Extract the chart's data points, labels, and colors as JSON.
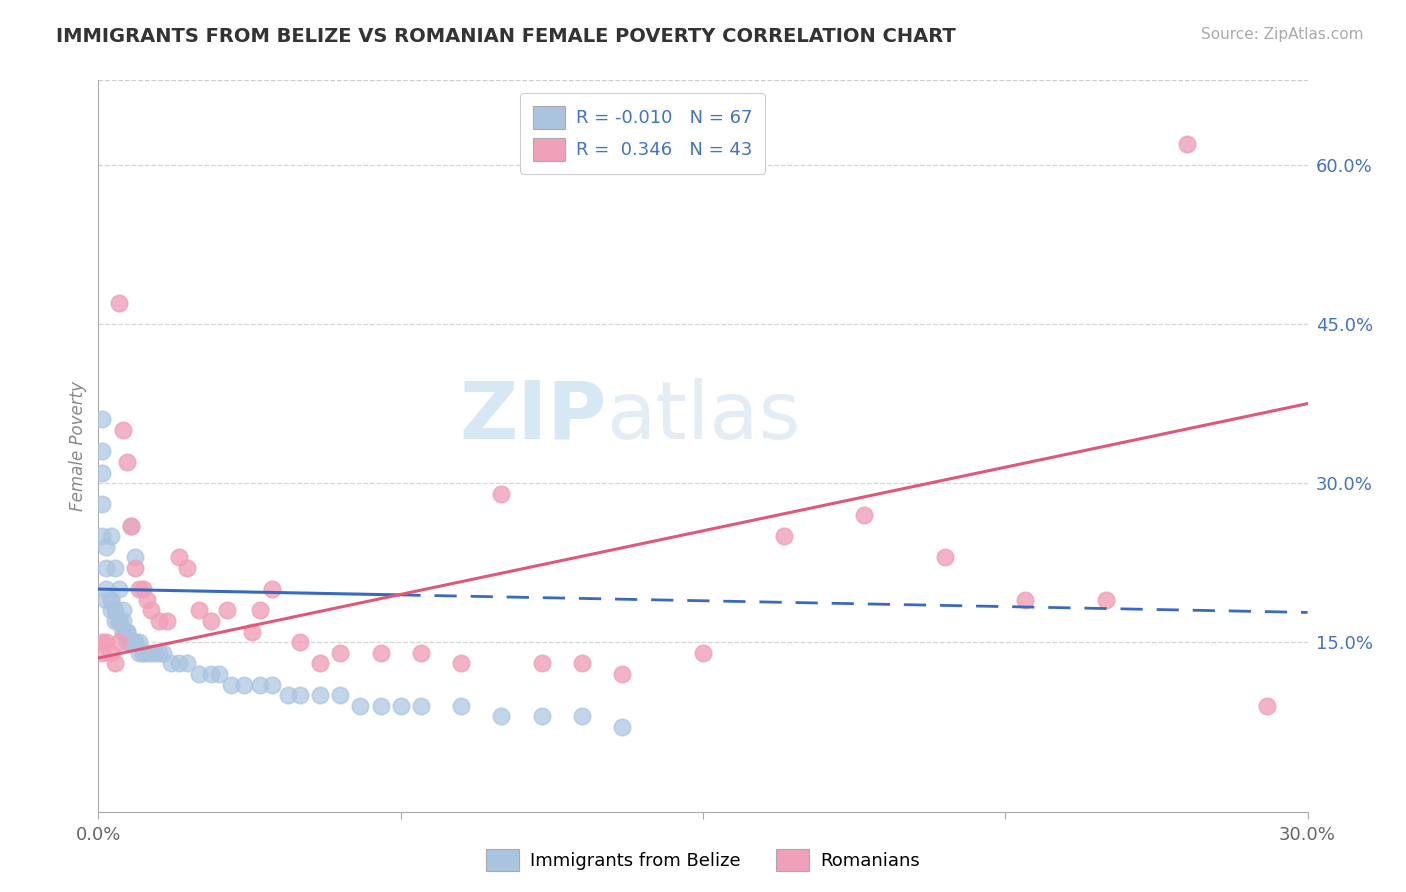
{
  "title": "IMMIGRANTS FROM BELIZE VS ROMANIAN FEMALE POVERTY CORRELATION CHART",
  "source": "Source: ZipAtlas.com",
  "ylabel": "Female Poverty",
  "right_yticks": [
    0.15,
    0.3,
    0.45,
    0.6
  ],
  "right_yticklabels": [
    "15.0%",
    "30.0%",
    "45.0%",
    "60.0%"
  ],
  "xlim": [
    0.0,
    0.3
  ],
  "ylim": [
    -0.01,
    0.68
  ],
  "belize_color": "#aac4e0",
  "romanian_color": "#f0a0b8",
  "belize_line_color": "#3a6abf",
  "romanian_line_color": "#e05878",
  "background_color": "#ffffff",
  "grid_color": "#cccccc",
  "tick_color": "#4472c4",
  "belize_x": [
    0.001,
    0.001,
    0.001,
    0.001,
    0.001,
    0.002,
    0.002,
    0.002,
    0.002,
    0.003,
    0.003,
    0.003,
    0.004,
    0.004,
    0.004,
    0.005,
    0.005,
    0.005,
    0.006,
    0.006,
    0.006,
    0.007,
    0.007,
    0.007,
    0.008,
    0.008,
    0.009,
    0.009,
    0.01,
    0.01,
    0.011,
    0.011,
    0.012,
    0.013,
    0.014,
    0.015,
    0.016,
    0.018,
    0.02,
    0.022,
    0.025,
    0.028,
    0.03,
    0.033,
    0.036,
    0.04,
    0.043,
    0.047,
    0.05,
    0.055,
    0.06,
    0.065,
    0.07,
    0.075,
    0.08,
    0.09,
    0.1,
    0.11,
    0.12,
    0.13,
    0.003,
    0.004,
    0.005,
    0.006,
    0.007,
    0.008,
    0.009
  ],
  "belize_y": [
    0.36,
    0.33,
    0.31,
    0.28,
    0.25,
    0.24,
    0.22,
    0.2,
    0.19,
    0.19,
    0.19,
    0.18,
    0.18,
    0.18,
    0.17,
    0.17,
    0.17,
    0.17,
    0.17,
    0.16,
    0.16,
    0.16,
    0.16,
    0.15,
    0.15,
    0.15,
    0.15,
    0.15,
    0.15,
    0.14,
    0.14,
    0.14,
    0.14,
    0.14,
    0.14,
    0.14,
    0.14,
    0.13,
    0.13,
    0.13,
    0.12,
    0.12,
    0.12,
    0.11,
    0.11,
    0.11,
    0.11,
    0.1,
    0.1,
    0.1,
    0.1,
    0.09,
    0.09,
    0.09,
    0.09,
    0.09,
    0.08,
    0.08,
    0.08,
    0.07,
    0.25,
    0.22,
    0.2,
    0.18,
    0.16,
    0.26,
    0.23
  ],
  "romanian_x": [
    0.001,
    0.001,
    0.002,
    0.003,
    0.004,
    0.005,
    0.005,
    0.006,
    0.007,
    0.008,
    0.009,
    0.01,
    0.011,
    0.012,
    0.013,
    0.015,
    0.017,
    0.02,
    0.022,
    0.025,
    0.028,
    0.032,
    0.038,
    0.043,
    0.05,
    0.06,
    0.07,
    0.08,
    0.09,
    0.1,
    0.11,
    0.13,
    0.15,
    0.17,
    0.19,
    0.21,
    0.23,
    0.25,
    0.27,
    0.29,
    0.04,
    0.055,
    0.12
  ],
  "romanian_y": [
    0.15,
    0.14,
    0.15,
    0.14,
    0.13,
    0.47,
    0.15,
    0.35,
    0.32,
    0.26,
    0.22,
    0.2,
    0.2,
    0.19,
    0.18,
    0.17,
    0.17,
    0.23,
    0.22,
    0.18,
    0.17,
    0.18,
    0.16,
    0.2,
    0.15,
    0.14,
    0.14,
    0.14,
    0.13,
    0.29,
    0.13,
    0.12,
    0.14,
    0.25,
    0.27,
    0.23,
    0.19,
    0.19,
    0.62,
    0.09,
    0.18,
    0.13,
    0.13
  ],
  "belize_trendline_x": [
    0.0,
    0.3
  ],
  "belize_trendline_y": [
    0.2,
    0.178
  ],
  "romanian_trendline_x": [
    0.0,
    0.3
  ],
  "romanian_trendline_y": [
    0.135,
    0.375
  ]
}
